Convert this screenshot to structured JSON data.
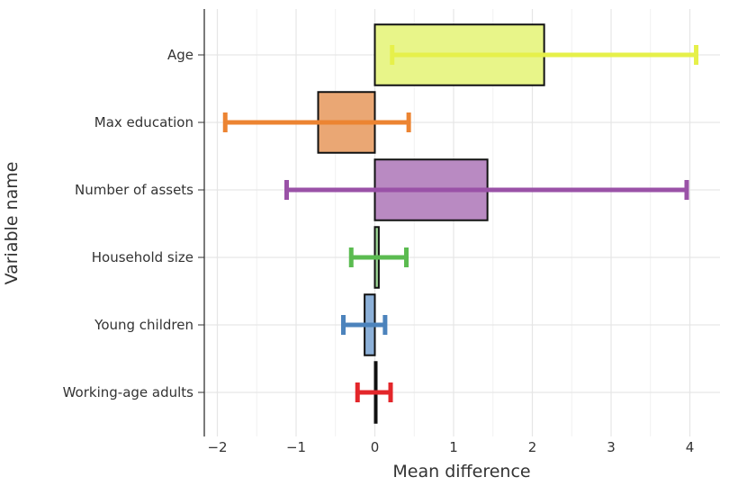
{
  "chart_data": {
    "type": "bar",
    "orientation": "horizontal",
    "xlabel": "Mean difference",
    "ylabel": "Variable name",
    "xlim": [
      -2.2,
      4.4
    ],
    "x_ticks": [
      -2,
      -1,
      0,
      1,
      2,
      3,
      4
    ],
    "x_tick_labels": [
      "−2",
      "−1",
      "0",
      "1",
      "2",
      "3",
      "4"
    ],
    "grid": true,
    "categories": [
      "Age",
      "Max education",
      "Number of assets",
      "Household size",
      "Young children",
      "Working-age adults"
    ],
    "values": [
      2.15,
      -0.72,
      1.43,
      0.05,
      -0.13,
      0.0
    ],
    "ci_low": [
      0.22,
      -1.9,
      -1.12,
      -0.3,
      -0.4,
      -0.22
    ],
    "ci_high": [
      4.08,
      0.43,
      3.96,
      0.4,
      0.13,
      0.2
    ],
    "colors": [
      "#e6f04a",
      "#ec8432",
      "#9a52a7",
      "#5bbb50",
      "#4c83bc",
      "#e3262a"
    ],
    "bar_fill_colors": [
      "#e8f589",
      "#eaa774",
      "#b98ac2",
      "#9fd896",
      "#8cb0d8",
      "#f08a8c"
    ]
  }
}
